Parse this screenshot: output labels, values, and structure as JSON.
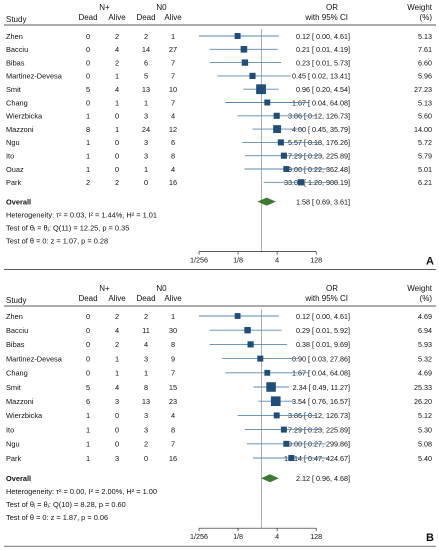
{
  "chart_data": [
    {
      "type": "forest",
      "panel_label": "A",
      "header": {
        "study": "Study",
        "group1": "N+",
        "group2": "N0",
        "dead1": "Dead",
        "alive1": "Alive",
        "dead2": "Dead",
        "alive2": "Alive",
        "effect": "OR",
        "ci": "with 95% CI",
        "weight": "Weight",
        "weight_unit": "(%)"
      },
      "studies": [
        {
          "study": "Zhen",
          "n_dead": "0",
          "n_alive": "2",
          "z_dead": "2",
          "z_alive": "1",
          "or": 0.12,
          "lo": 0.0,
          "hi": 4.61,
          "ci_text": "0.12 [ 0.00,    4.61]",
          "weight": "5.13"
        },
        {
          "study": "Bacciu",
          "n_dead": "0",
          "n_alive": "4",
          "z_dead": "14",
          "z_alive": "27",
          "or": 0.21,
          "lo": 0.01,
          "hi": 4.19,
          "ci_text": "0.21 [ 0.01,    4.19]",
          "weight": "7.61"
        },
        {
          "study": "Bibas",
          "n_dead": "0",
          "n_alive": "2",
          "z_dead": "6",
          "z_alive": "7",
          "or": 0.23,
          "lo": 0.01,
          "hi": 5.73,
          "ci_text": "0.23 [ 0.01,    5.73]",
          "weight": "6.60"
        },
        {
          "study": "Martinez-Devesa",
          "n_dead": "0",
          "n_alive": "1",
          "z_dead": "5",
          "z_alive": "7",
          "or": 0.45,
          "lo": 0.02,
          "hi": 13.41,
          "ci_text": "0.45 [ 0.02,   13.41]",
          "weight": "5.96"
        },
        {
          "study": "Smit",
          "n_dead": "5",
          "n_alive": "4",
          "z_dead": "13",
          "z_alive": "10",
          "or": 0.96,
          "lo": 0.2,
          "hi": 4.54,
          "ci_text": "0.96 [ 0.20,    4.54]",
          "weight": "27.23"
        },
        {
          "study": "Chang",
          "n_dead": "0",
          "n_alive": "1",
          "z_dead": "1",
          "z_alive": "7",
          "or": 1.67,
          "lo": 0.04,
          "hi": 64.08,
          "ci_text": "1.67 [ 0.04,   64.08]",
          "weight": "5.13"
        },
        {
          "study": "Wierzbicka",
          "n_dead": "1",
          "n_alive": "0",
          "z_dead": "3",
          "z_alive": "4",
          "or": 3.86,
          "lo": 0.12,
          "hi": 126.73,
          "ci_text": "3.86 [ 0.12,  126.73]",
          "weight": "5.60"
        },
        {
          "study": "Mazzoni",
          "n_dead": "8",
          "n_alive": "1",
          "z_dead": "24",
          "z_alive": "12",
          "or": 4.0,
          "lo": 0.45,
          "hi": 35.79,
          "ci_text": "4.00 [ 0.45,   35.79]",
          "weight": "14.00"
        },
        {
          "study": "Ngu",
          "n_dead": "1",
          "n_alive": "0",
          "z_dead": "3",
          "z_alive": "6",
          "or": 5.57,
          "lo": 0.18,
          "hi": 176.26,
          "ci_text": "5.57 [ 0.18,  176.26]",
          "weight": "5.72"
        },
        {
          "study": "Ito",
          "n_dead": "1",
          "n_alive": "0",
          "z_dead": "3",
          "z_alive": "8",
          "or": 7.29,
          "lo": 0.23,
          "hi": 225.89,
          "ci_text": "7.29 [ 0.23,  225.89]",
          "weight": "5.79"
        },
        {
          "study": "Ouaz",
          "n_dead": "1",
          "n_alive": "0",
          "z_dead": "1",
          "z_alive": "4",
          "or": 9.0,
          "lo": 0.22,
          "hi": 362.48,
          "ci_text": "9.00 [ 0.22,  362.48]",
          "weight": "5.01"
        },
        {
          "study": "Park",
          "n_dead": "2",
          "n_alive": "2",
          "z_dead": "0",
          "z_alive": "16",
          "or": 33.0,
          "lo": 1.2,
          "hi": 908.19,
          "ci_text": "33.00 [ 1.20,  908.19]",
          "weight": "6.21"
        }
      ],
      "overall": {
        "label": "Overall",
        "or": 1.58,
        "lo": 0.69,
        "hi": 3.61,
        "ci_text": "1.58 [ 0.69,    3.61]"
      },
      "heterogeneity": "Heterogeneity: τ² = 0.03, I² = 1.44%, H² = 1.01",
      "test_equal": "Test of θᵢ = θⱼ: Q(11) = 12.25, p = 0.35",
      "test_zero": "Test of θ = 0: z = 1.07, p = 0.28",
      "x_scale": "log2",
      "xlim": [
        0.00390625,
        256
      ],
      "ticks": [
        0.00390625,
        0.125,
        4,
        128
      ],
      "tick_labels": [
        "1/256",
        "1/8",
        "4",
        "128"
      ]
    },
    {
      "type": "forest",
      "panel_label": "B",
      "header": {
        "study": "Study",
        "group1": "N+",
        "group2": "N0",
        "dead1": "Dead",
        "alive1": "Alive",
        "dead2": "Dead",
        "alive2": "Alive",
        "effect": "OR",
        "ci": "with 95% CI",
        "weight": "Weight",
        "weight_unit": "(%)"
      },
      "studies": [
        {
          "study": "Zhen",
          "n_dead": "0",
          "n_alive": "2",
          "z_dead": "2",
          "z_alive": "1",
          "or": 0.12,
          "lo": 0.0,
          "hi": 4.61,
          "ci_text": "0.12 [ 0.00,    4.61]",
          "weight": "4.69"
        },
        {
          "study": "Bacciu",
          "n_dead": "0",
          "n_alive": "4",
          "z_dead": "11",
          "z_alive": "30",
          "or": 0.29,
          "lo": 0.01,
          "hi": 5.92,
          "ci_text": "0.29 [ 0.01,    5.92]",
          "weight": "6.94"
        },
        {
          "study": "Bibas",
          "n_dead": "0",
          "n_alive": "2",
          "z_dead": "4",
          "z_alive": "8",
          "or": 0.38,
          "lo": 0.01,
          "hi": 9.69,
          "ci_text": "0.38 [ 0.01,    9.69]",
          "weight": "5.93"
        },
        {
          "study": "Martinez-Devesa",
          "n_dead": "0",
          "n_alive": "1",
          "z_dead": "3",
          "z_alive": "9",
          "or": 0.9,
          "lo": 0.03,
          "hi": 27.86,
          "ci_text": "0.90 [ 0.03,   27.86]",
          "weight": "5.32"
        },
        {
          "study": "Chang",
          "n_dead": "0",
          "n_alive": "1",
          "z_dead": "1",
          "z_alive": "7",
          "or": 1.67,
          "lo": 0.04,
          "hi": 64.08,
          "ci_text": "1.67 [ 0.04,   64.08]",
          "weight": "4.69"
        },
        {
          "study": "Smit",
          "n_dead": "5",
          "n_alive": "4",
          "z_dead": "8",
          "z_alive": "15",
          "or": 2.34,
          "lo": 0.49,
          "hi": 11.27,
          "ci_text": "2.34 [ 0.49,   11.27]",
          "weight": "25.33"
        },
        {
          "study": "Mazzoni",
          "n_dead": "6",
          "n_alive": "3",
          "z_dead": "13",
          "z_alive": "23",
          "or": 3.54,
          "lo": 0.76,
          "hi": 16.57,
          "ci_text": "3.54 [ 0.76,   16.57]",
          "weight": "26.20"
        },
        {
          "study": "Wierzbicka",
          "n_dead": "1",
          "n_alive": "0",
          "z_dead": "3",
          "z_alive": "4",
          "or": 3.86,
          "lo": 0.12,
          "hi": 126.73,
          "ci_text": "3.86 [ 0.12,  126.73]",
          "weight": "5.12"
        },
        {
          "study": "Ito",
          "n_dead": "1",
          "n_alive": "0",
          "z_dead": "3",
          "z_alive": "8",
          "or": 7.29,
          "lo": 0.23,
          "hi": 225.89,
          "ci_text": "7.29 [ 0.23,  225.89]",
          "weight": "5.30"
        },
        {
          "study": "Ngu",
          "n_dead": "1",
          "n_alive": "0",
          "z_dead": "2",
          "z_alive": "7",
          "or": 9.0,
          "lo": 0.27,
          "hi": 299.86,
          "ci_text": "9.00 [ 0.27,  299.86]",
          "weight": "5.08"
        },
        {
          "study": "Park",
          "n_dead": "1",
          "n_alive": "3",
          "z_dead": "0",
          "z_alive": "16",
          "or": 14.14,
          "lo": 0.47,
          "hi": 424.67,
          "ci_text": "14.14 [ 0.47,  424.67]",
          "weight": "5.40"
        }
      ],
      "overall": {
        "label": "Overall",
        "or": 2.12,
        "lo": 0.96,
        "hi": 4.68,
        "ci_text": "2.12 [ 0.96,    4.68]"
      },
      "heterogeneity": "Heterogeneity: τ² = 0.00, I² = 2.00%, H² = 1.00",
      "test_equal": "Test of θᵢ = θⱼ: Q(10) = 8.28, p = 0.60",
      "test_zero": "Test of θ = 0: z = 1.87, p = 0.06",
      "x_scale": "log2",
      "xlim": [
        0.00390625,
        256
      ],
      "ticks": [
        0.00390625,
        0.125,
        4,
        128
      ],
      "tick_labels": [
        "1/256",
        "1/8",
        "4",
        "128"
      ]
    }
  ],
  "colors": {
    "marker": "#1f4e79",
    "ci_line": "#5a88b0",
    "diamond": "#3c7a2f",
    "reference": "#888888",
    "text": "#111111"
  }
}
